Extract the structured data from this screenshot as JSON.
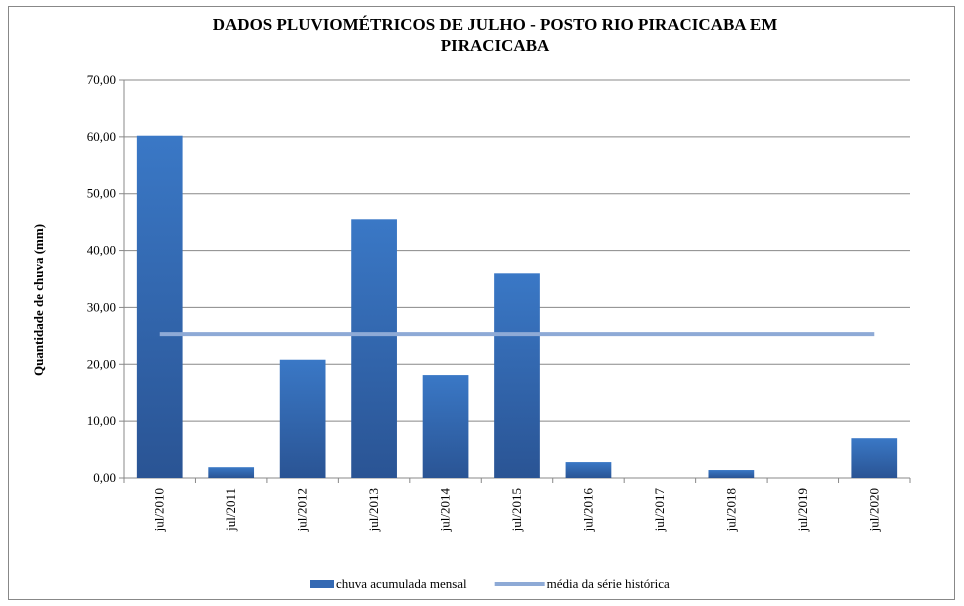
{
  "chart_data": {
    "type": "bar",
    "title": "DADOS PLUVIOMÉTRICOS DE JULHO - POSTO RIO PIRACICABA EM",
    "title_line2": "PIRACICABA",
    "y_label": "Quantidade de chuva (mm)",
    "categories": [
      "jul/2010",
      "jul/2011",
      "jul/2012",
      "jul/2013",
      "jul/2014",
      "jul/2015",
      "jul/2016",
      "jul/2017",
      "jul/2018",
      "jul/2019",
      "jul/2020"
    ],
    "series": [
      {
        "name": "chuva acumulada mensal",
        "type": "bar",
        "color": "#3469b3",
        "values": [
          60.2,
          1.9,
          20.8,
          45.5,
          18.1,
          36.0,
          2.8,
          0,
          1.4,
          0,
          7.0
        ]
      },
      {
        "name": "média da série histórica",
        "type": "line",
        "color": "#8eaad6",
        "values": [
          25.3,
          25.3,
          25.3,
          25.3,
          25.3,
          25.3,
          25.3,
          25.3,
          25.3,
          25.3,
          25.3
        ]
      }
    ],
    "ylim": [
      0,
      70
    ],
    "yticks": [
      {
        "value": 0,
        "label": "0,00"
      },
      {
        "value": 10,
        "label": "10,00"
      },
      {
        "value": 20,
        "label": "20,00"
      },
      {
        "value": 30,
        "label": "30,00"
      },
      {
        "value": 40,
        "label": "40,00"
      },
      {
        "value": 50,
        "label": "50,00"
      },
      {
        "value": 60,
        "label": "60,00"
      },
      {
        "value": 70,
        "label": "70,00"
      }
    ],
    "grid": true,
    "legend": "bottom"
  }
}
